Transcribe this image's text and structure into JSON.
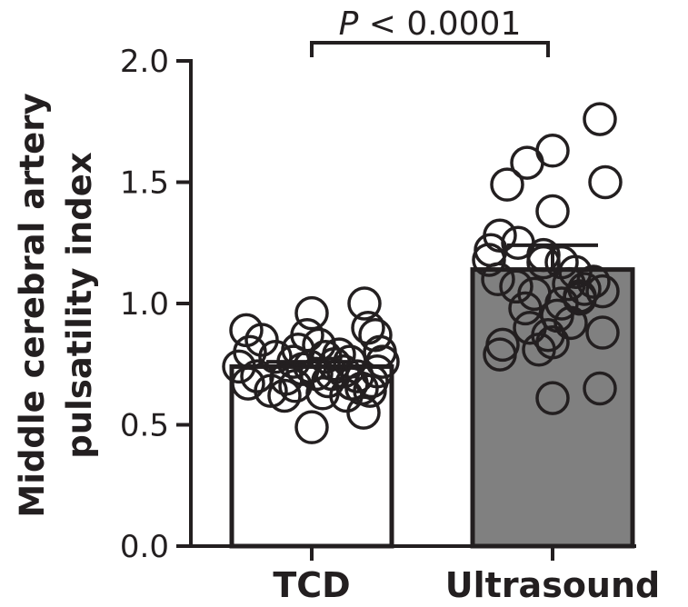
{
  "chart_data": {
    "type": "bar",
    "categories": [
      "TCD",
      "Ultrasound"
    ],
    "values": [
      0.74,
      1.14
    ],
    "errors": [
      0.02,
      0.1
    ],
    "bar_colors": [
      "#ffffff",
      "#808080"
    ],
    "ylabel_lines": [
      "Middle cerebral artery",
      "pulsatility index"
    ],
    "ylim": [
      0,
      2.0
    ],
    "yticks": [
      0.0,
      0.5,
      1.0,
      1.5,
      2.0
    ],
    "ytick_labels": [
      "0.0",
      "0.5",
      "1.0",
      "1.5",
      "2.0"
    ],
    "annotation": {
      "italic": "P",
      "text": " < 0.0001"
    },
    "points": [
      [
        0.89,
        0.85,
        0.8,
        0.78,
        0.74,
        0.7,
        0.67,
        0.64,
        0.62,
        0.76,
        0.73,
        0.69,
        0.96,
        0.87,
        0.83,
        0.81,
        0.78,
        0.75,
        0.71,
        0.68,
        0.66,
        0.63,
        0.49,
        0.79,
        0.76,
        0.72,
        0.7,
        0.67,
        0.65,
        0.62,
        0.74,
        0.71,
        1.0,
        0.9,
        0.87,
        0.8,
        0.76,
        0.72,
        0.68,
        0.64,
        0.55
      ],
      [
        1.76,
        1.5,
        1.28,
        1.18,
        1.22,
        1.49,
        1.58,
        1.63,
        1.38,
        1.25,
        1.2,
        1.17,
        1.13,
        1.09,
        1.05,
        1.02,
        0.98,
        0.92,
        0.87,
        0.83,
        0.79,
        1.1,
        1.07,
        1.04,
        1.0,
        0.95,
        0.9,
        0.84,
        0.81,
        1.17,
        1.08,
        1.06,
        1.03,
        0.88,
        0.65,
        0.61
      ]
    ]
  }
}
